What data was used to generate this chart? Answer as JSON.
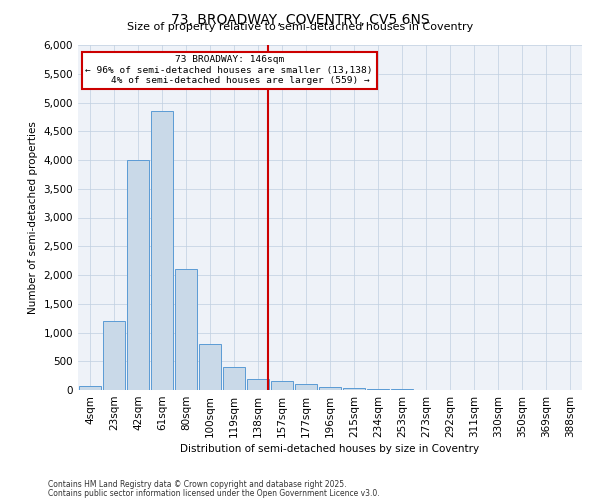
{
  "title": "73, BROADWAY, COVENTRY, CV5 6NS",
  "subtitle": "Size of property relative to semi-detached houses in Coventry",
  "xlabel": "Distribution of semi-detached houses by size in Coventry",
  "ylabel": "Number of semi-detached properties",
  "bar_labels": [
    "4sqm",
    "23sqm",
    "42sqm",
    "61sqm",
    "80sqm",
    "100sqm",
    "119sqm",
    "138sqm",
    "157sqm",
    "177sqm",
    "196sqm",
    "215sqm",
    "234sqm",
    "253sqm",
    "273sqm",
    "292sqm",
    "311sqm",
    "330sqm",
    "350sqm",
    "369sqm",
    "388sqm"
  ],
  "bar_heights": [
    75,
    1200,
    4000,
    4850,
    2100,
    800,
    400,
    200,
    150,
    100,
    50,
    30,
    15,
    10,
    5,
    5,
    3,
    3,
    3,
    3,
    0
  ],
  "bar_color": "#c9d9e8",
  "bar_edge_color": "#5b9bd5",
  "property_size_bin": 7.5,
  "property_label": "73 BROADWAY: 146sqm",
  "pct_smaller": 96,
  "n_smaller": 13138,
  "pct_larger": 4,
  "n_larger": 559,
  "vline_color": "#cc0000",
  "annotation_box_color": "#cc0000",
  "ylim": [
    0,
    6000
  ],
  "yticks": [
    0,
    500,
    1000,
    1500,
    2000,
    2500,
    3000,
    3500,
    4000,
    4500,
    5000,
    5500,
    6000
  ],
  "grid_color": "#c0cfe0",
  "background_color": "#eef2f8",
  "footnote1": "Contains HM Land Registry data © Crown copyright and database right 2025.",
  "footnote2": "Contains public sector information licensed under the Open Government Licence v3.0."
}
